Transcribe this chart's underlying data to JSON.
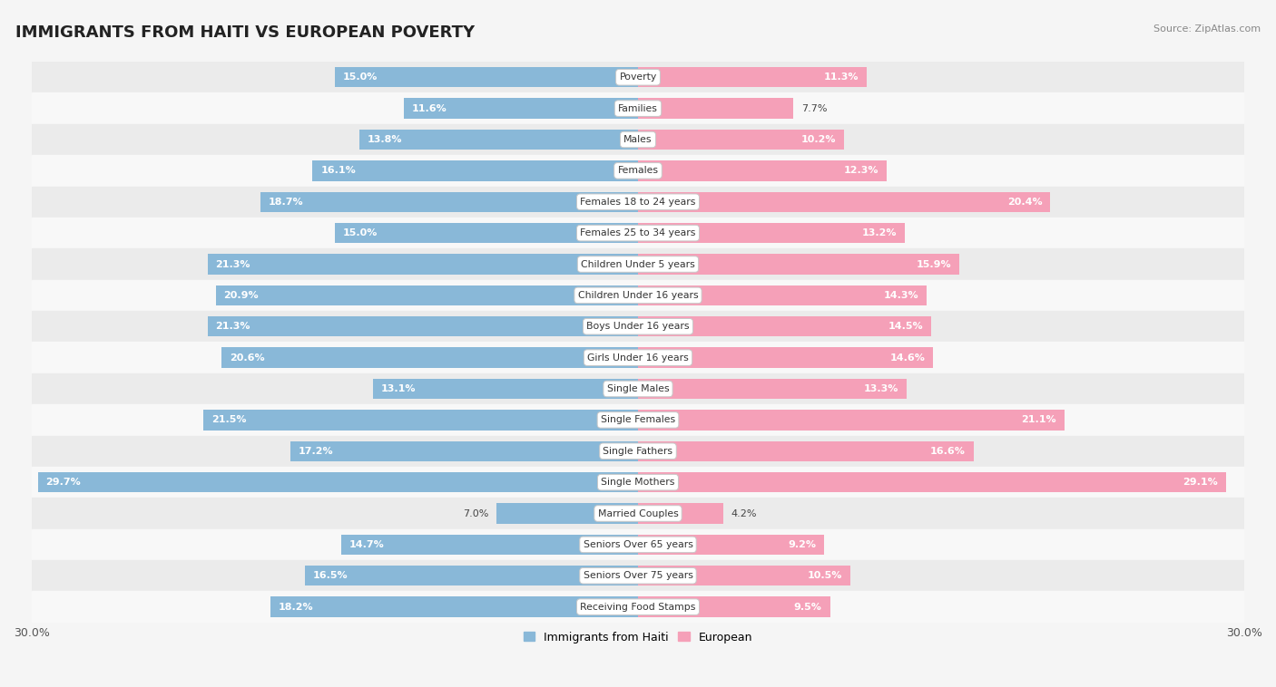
{
  "title": "IMMIGRANTS FROM HAITI VS EUROPEAN POVERTY",
  "source": "Source: ZipAtlas.com",
  "categories": [
    "Poverty",
    "Families",
    "Males",
    "Females",
    "Females 18 to 24 years",
    "Females 25 to 34 years",
    "Children Under 5 years",
    "Children Under 16 years",
    "Boys Under 16 years",
    "Girls Under 16 years",
    "Single Males",
    "Single Females",
    "Single Fathers",
    "Single Mothers",
    "Married Couples",
    "Seniors Over 65 years",
    "Seniors Over 75 years",
    "Receiving Food Stamps"
  ],
  "haiti_values": [
    15.0,
    11.6,
    13.8,
    16.1,
    18.7,
    15.0,
    21.3,
    20.9,
    21.3,
    20.6,
    13.1,
    21.5,
    17.2,
    29.7,
    7.0,
    14.7,
    16.5,
    18.2
  ],
  "european_values": [
    11.3,
    7.7,
    10.2,
    12.3,
    20.4,
    13.2,
    15.9,
    14.3,
    14.5,
    14.6,
    13.3,
    21.1,
    16.6,
    29.1,
    4.2,
    9.2,
    10.5,
    9.5
  ],
  "haiti_color": "#89b8d8",
  "european_color": "#f5a0b8",
  "background_color": "#f5f5f5",
  "row_colors": [
    "#ebebeb",
    "#f8f8f8"
  ],
  "axis_max": 30.0,
  "legend_haiti": "Immigrants from Haiti",
  "legend_european": "European",
  "inside_label_threshold": 8.0,
  "title_fontsize": 13,
  "label_fontsize": 8.0,
  "cat_fontsize": 7.8
}
